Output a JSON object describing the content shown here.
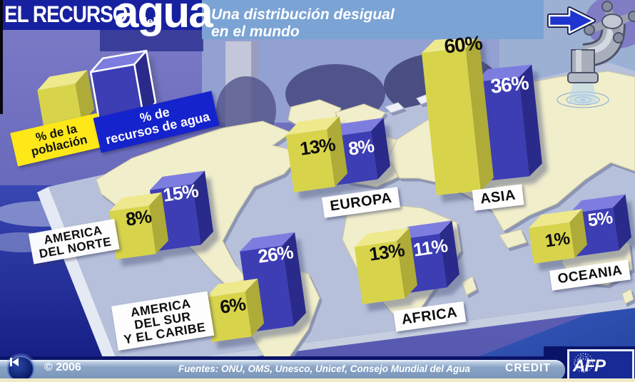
{
  "header": {
    "title_line1": "EL RECURSO",
    "title_middle": "del",
    "title_line2": "agua",
    "subtitle": "Una distribución desigual\nen el mundo"
  },
  "legend": {
    "population_label": "% de la\npoblación",
    "water_label": "% de\nrecursos de agua"
  },
  "chart_data": {
    "type": "bar",
    "title": "El recurso del agua",
    "subtitle": "Una distribución desigual en el mundo",
    "unit": "%",
    "legend_position": "top-left",
    "series": [
      {
        "name": "% de la población",
        "color": "#d7d44c"
      },
      {
        "name": "% de recursos de agua",
        "color": "#3d3db4"
      }
    ],
    "categories": [
      "AMERICA DEL NORTE",
      "AMERICA DEL SUR Y EL CARIBE",
      "EUROPA",
      "AFRICA",
      "ASIA",
      "OCEANIA"
    ],
    "continents": [
      {
        "name": "AMERICA\nDEL NORTE",
        "population_pct": 8,
        "water_pct": 15,
        "population": "8%",
        "water": "15%"
      },
      {
        "name": "AMERICA\nDEL SUR\nY EL CARIBE",
        "population_pct": 6,
        "water_pct": 26,
        "population": "6%",
        "water": "26%"
      },
      {
        "name": "EUROPA",
        "population_pct": 13,
        "water_pct": 8,
        "population": "13%",
        "water": "8%"
      },
      {
        "name": "AFRICA",
        "population_pct": 13,
        "water_pct": 11,
        "population": "13%",
        "water": "11%"
      },
      {
        "name": "ASIA",
        "population_pct": 60,
        "water_pct": 36,
        "population": "60%",
        "water": "36%"
      },
      {
        "name": "OCEANIA",
        "population_pct": 1,
        "water_pct": 5,
        "population": "1%",
        "water": "5%"
      }
    ]
  },
  "footer": {
    "copyright": "© 2006",
    "sources": "Fuentes: ONU, OMS, Unesco, Unicef, Consejo Mundial del Agua",
    "credit_label": "CREDIT",
    "logo_text": "AFP"
  },
  "colors": {
    "population_bar": "#d7d44c",
    "water_bar": "#3d3db4",
    "header_bar": "#1721a0",
    "subtitle_panel": "#7ba3d4",
    "map_panel": "#b6c0da",
    "land": "#f1eecb"
  },
  "icons": [
    "next-arrow-icon",
    "faucet-icon",
    "water-ripples-icon",
    "rewind-icon",
    "afp-globe-icon"
  ]
}
